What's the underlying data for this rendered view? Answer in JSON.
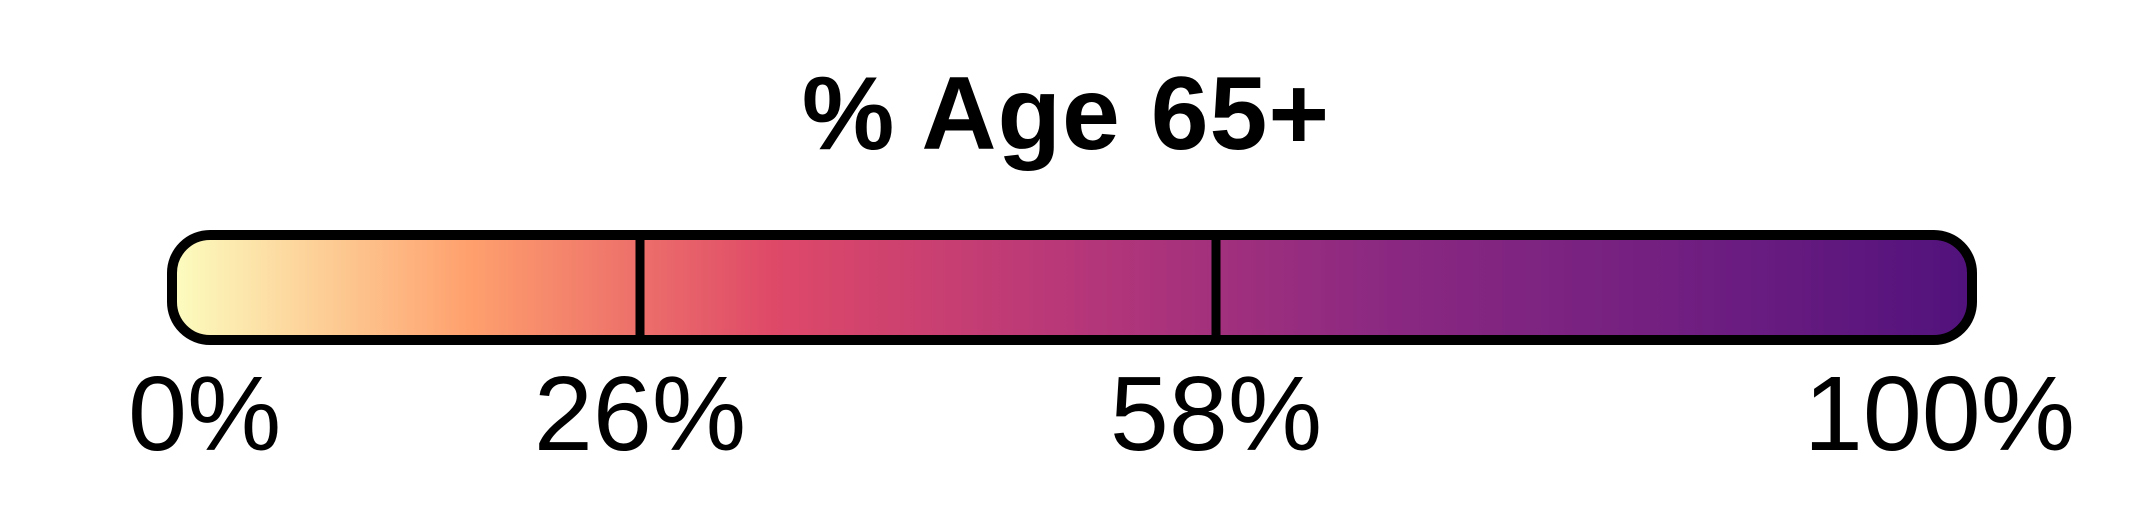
{
  "chart_data": {
    "type": "heatmap",
    "title": "% Age 65+",
    "colorbar": {
      "min": 0,
      "max": 100,
      "breaks": [
        26,
        58
      ],
      "ticks": [
        {
          "value": 0,
          "label": "0%"
        },
        {
          "value": 26,
          "label": "26%"
        },
        {
          "value": 58,
          "label": "58%"
        },
        {
          "value": 100,
          "label": "100%"
        }
      ],
      "colormap": "magma-like",
      "color_stops": [
        "#fcfdbf",
        "#fe9f6d",
        "#de4968",
        "#b73779",
        "#8c2981",
        "#721f81",
        "#51127c"
      ]
    }
  }
}
